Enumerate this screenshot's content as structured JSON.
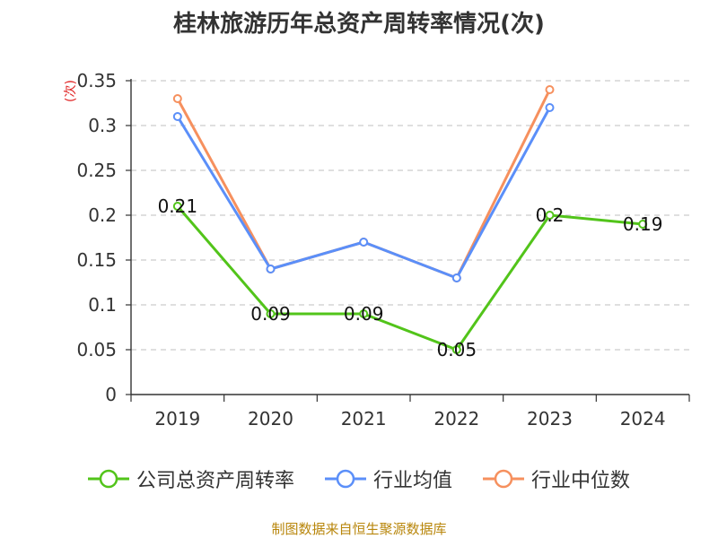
{
  "title": "桂林旅游历年总资产周转率情况(次)",
  "source": "制图数据来自恒生聚源数据库",
  "chart_data": {
    "type": "line",
    "title": "桂林旅游历年总资产周转率情况(次)",
    "ylabel": "(次)",
    "xlabel": "",
    "categories": [
      "2019",
      "2020",
      "2021",
      "2022",
      "2023",
      "2024"
    ],
    "ylim": [
      0,
      0.35
    ],
    "yticks": [
      "0",
      "0.05",
      "0.1",
      "0.15",
      "0.2",
      "0.25",
      "0.3",
      "0.35"
    ],
    "grid": true,
    "legend_position": "bottom",
    "series": [
      {
        "name": "公司总资产周转率",
        "color": "#52c41a",
        "values": [
          0.21,
          0.09,
          0.09,
          0.05,
          0.2,
          0.19
        ],
        "data_labels": [
          "0.21",
          "0.09",
          "0.09",
          "0.05",
          "0.2",
          "0.19"
        ]
      },
      {
        "name": "行业均值",
        "color": "#5b8ff9",
        "values": [
          0.31,
          0.14,
          0.17,
          0.13,
          0.32,
          null
        ]
      },
      {
        "name": "行业中位数",
        "color": "#f6905e",
        "values": [
          0.33,
          0.14,
          0.17,
          0.13,
          0.34,
          null
        ]
      }
    ]
  }
}
